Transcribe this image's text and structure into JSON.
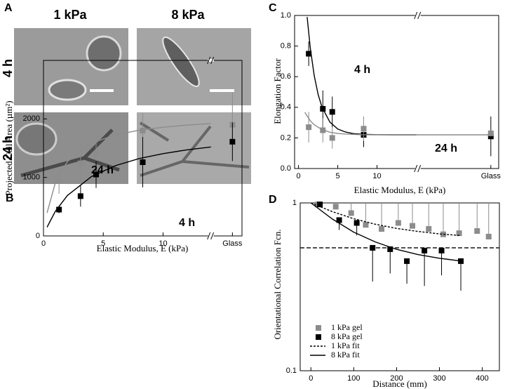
{
  "panel_a": {
    "label": "A",
    "columns": [
      "1 kPa",
      "8 kPa"
    ],
    "rows": [
      "4 h",
      "24 h"
    ]
  },
  "chart_data": [
    {
      "type": "scatter",
      "panel_label": "B",
      "xlabel": "Elastic Modulus, E (kPa)",
      "ylabel": "Projected Cell Area (µm²)",
      "xlim": [
        0,
        16.6
      ],
      "ylim": [
        0,
        3000
      ],
      "xticks": [
        0,
        5,
        10,
        {
          "value": 15.8,
          "label": "Glass"
        }
      ],
      "yticks": [
        0,
        1000,
        2000
      ],
      "x_break": 14,
      "series": [
        {
          "name": "24 h",
          "color": "#8c8c8c",
          "marker": "square",
          "x": [
            1.3,
            3.1,
            4.4,
            8.3,
            15.8
          ],
          "values": [
            940,
            1240,
            1400,
            1800,
            1900
          ],
          "errors": [
            220,
            350,
            240,
            300,
            550
          ]
        },
        {
          "name": "4 h",
          "color": "#000000",
          "marker": "square",
          "x": [
            1.3,
            3.1,
            4.4,
            8.3,
            15.8
          ],
          "values": [
            450,
            680,
            1050,
            1260,
            1610
          ],
          "errors": [
            60,
            180,
            230,
            430,
            330
          ]
        },
        {
          "color": "#8c8c8c",
          "x": [
            0.3,
            1,
            2,
            4,
            6,
            8,
            10,
            12,
            14
          ],
          "values": [
            394,
            913,
            1273,
            1585,
            1726,
            1806,
            1858,
            1895,
            1921
          ]
        },
        {
          "color": "#000000",
          "x": [
            0.3,
            1,
            2,
            4,
            6,
            8,
            10,
            12,
            14
          ],
          "values": [
            150,
            422,
            691,
            1013,
            1200,
            1322,
            1407,
            1471,
            1520
          ]
        }
      ]
    },
    {
      "type": "scatter",
      "panel_label": "C",
      "xlabel": "Elastic Modulus, E (kPa)",
      "ylabel": "Elongation Factor",
      "xlim": [
        -0.5,
        25.5
      ],
      "ylim": [
        0,
        1
      ],
      "xticks": [
        0,
        5,
        10,
        {
          "value": 24.5,
          "label": "Glass"
        }
      ],
      "yticks": [
        {
          "value": 0,
          "label": "0.0"
        },
        0.2,
        0.4,
        0.6,
        0.8,
        {
          "value": 1,
          "label": "1.0"
        }
      ],
      "x_break": 15.2,
      "series": [
        {
          "name": "4 h",
          "color": "#000000",
          "marker": "square",
          "x": [
            1.3,
            3.1,
            4.3,
            8.3,
            24.5
          ],
          "values": [
            0.75,
            0.39,
            0.37,
            0.22,
            0.21
          ],
          "errors": [
            0.08,
            0.12,
            0.1,
            0.08,
            0.13
          ]
        },
        {
          "name": "24 h",
          "color": "#8c8c8c",
          "marker": "square",
          "x": [
            1.3,
            3.1,
            4.3,
            8.3,
            24.5
          ],
          "values": [
            0.27,
            0.25,
            0.2,
            0.26,
            0.23
          ],
          "errors": [
            0.1,
            0.08,
            0.07,
            0.08,
            0.02
          ]
        },
        {
          "color": "#000000",
          "x": [
            1.1,
            1.5,
            2,
            2.5,
            3,
            4,
            5,
            6,
            7,
            8,
            10,
            12,
            15
          ],
          "values": [
            0.99,
            0.787,
            0.607,
            0.483,
            0.399,
            0.303,
            0.258,
            0.238,
            0.228,
            0.224,
            0.221,
            0.22,
            0.22
          ]
        },
        {
          "color": "#8c8c8c",
          "x": [
            0.8,
            1.5,
            2,
            3,
            4,
            5,
            6,
            8,
            10,
            15,
            24.5
          ],
          "values": [
            0.367,
            0.312,
            0.286,
            0.254,
            0.237,
            0.229,
            0.225,
            0.221,
            0.22,
            0.22,
            0.22
          ]
        }
      ]
    },
    {
      "type": "scatter",
      "panel_label": "D",
      "xlabel": "Distance (mm)",
      "ylabel": "Orientational  Correlation Fcn.",
      "xlim": [
        -25,
        440
      ],
      "ylim": [
        0.1,
        1
      ],
      "log_y": true,
      "xticks": [
        0,
        100,
        200,
        300,
        400
      ],
      "yticks": [
        0.1,
        1
      ],
      "hline": 0.54,
      "legend": "lower left",
      "series": [
        {
          "name": "1 kPa gel",
          "color": "#8c8c8c",
          "marker": "square",
          "error_direction": "up",
          "x": [
            16,
            58,
            94,
            128,
            165,
            204,
            237,
            275,
            309,
            346,
            388,
            415
          ],
          "values": [
            0.98,
            0.95,
            0.87,
            0.74,
            0.7,
            0.76,
            0.73,
            0.7,
            0.65,
            0.66,
            0.68,
            0.63
          ],
          "errors": [
            0.02,
            0.05,
            0.13,
            0.26,
            0.3,
            0.24,
            0.27,
            0.3,
            0.35,
            0.34,
            0.32,
            0.37
          ]
        },
        {
          "name": "8 kPa gel",
          "color": "#000000",
          "marker": "square",
          "error_direction": "down",
          "x": [
            21,
            66,
            107,
            144,
            185,
            224,
            265,
            305,
            350
          ],
          "values": [
            0.98,
            0.79,
            0.76,
            0.54,
            0.53,
            0.45,
            0.52,
            0.52,
            0.45
          ],
          "errors": [
            0.02,
            0.1,
            0.12,
            0.2,
            0.15,
            0.12,
            0.2,
            0.15,
            0.15
          ]
        },
        {
          "name": "1 kPa fit",
          "color": "#000000",
          "dash": true,
          "x": [
            0,
            50,
            100,
            150,
            200,
            250,
            300,
            350
          ],
          "values": [
            1,
            0.887,
            0.805,
            0.747,
            0.705,
            0.676,
            0.654,
            0.639
          ]
        },
        {
          "name": "8 kPa fit",
          "color": "#000000",
          "x": [
            0,
            50,
            100,
            150,
            200,
            250,
            300,
            350
          ],
          "values": [
            1,
            0.802,
            0.67,
            0.586,
            0.529,
            0.492,
            0.468,
            0.451
          ]
        }
      ]
    }
  ]
}
